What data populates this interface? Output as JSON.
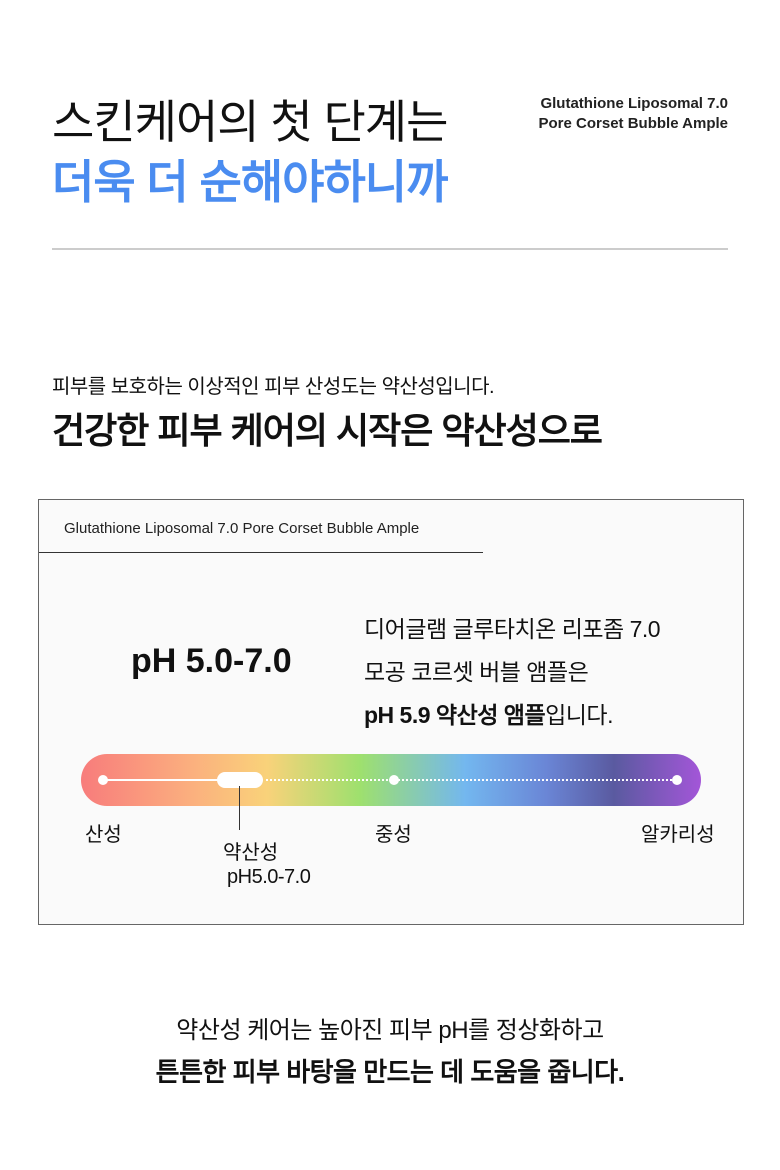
{
  "header": {
    "title_line1": "스킨케어의 첫 단계는",
    "title_line2": "더욱 더 순해야하니까",
    "product_line1": "Glutathione Liposomal 7.0",
    "product_line2": "Pore Corset Bubble Ample"
  },
  "intro": {
    "subtitle": "피부를 보호하는 이상적인 피부 산성도는 약산성입니다.",
    "headline": "건강한 피부 케어의 시작은 약산성으로"
  },
  "ph_box": {
    "tab_label": "Glutathione Liposomal 7.0 Pore Corset Bubble Ample",
    "ph_range": "pH 5.0-7.0",
    "desc_line1": "디어글램 글루타치온 리포좀 7.0",
    "desc_line2": "모공 코르셋 버블 앰플은",
    "desc_line3_bold": "pH 5.9 약산성 앰플",
    "desc_line3_rest": "입니다.",
    "scale": {
      "acid": "산성",
      "weak_acid": "약산성",
      "weak_acid_range": "pH5.0-7.0",
      "neutral": "중성",
      "alkaline": "알카리성"
    }
  },
  "footer": {
    "line1": "약산성 케어는 높아진 피부 pH를 정상화하고",
    "line2": "튼튼한 피부 바탕을 만드는 데 도움을 줍니다."
  },
  "colors": {
    "accent": "#4a8cf0"
  }
}
